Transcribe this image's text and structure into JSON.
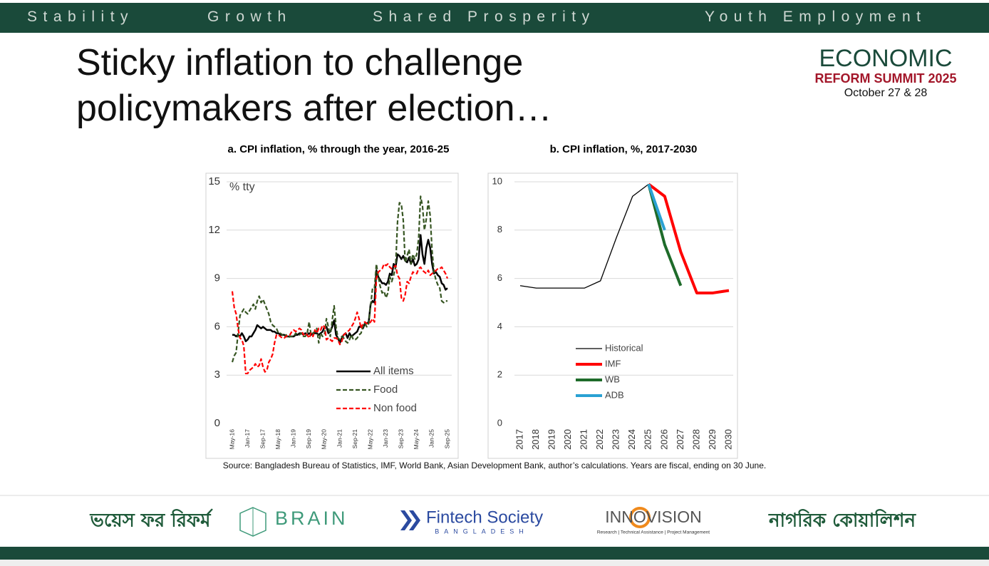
{
  "header": {
    "pillars": [
      "Stability",
      "Growth",
      "Shared Prosperity",
      "Youth Employment"
    ]
  },
  "title_lines": [
    "Sticky inflation to challenge",
    "policymakers after election…"
  ],
  "summit": {
    "line1": "ECONOMIC",
    "line2": "REFORM SUMMIT 2025",
    "dates": "October 27 & 28"
  },
  "source": "Source: Bangladesh Bureau of Statistics, IMF, World Bank, Asian Development Bank, author’s calculations. Years are fiscal, ending on 30 June.",
  "footer": {
    "voice": "ভয়েস ফর রিফর্ম",
    "brain": "BRAIN",
    "fintech": "Fintech Society",
    "fintech_sub": "BANGLADESH",
    "innovision": "INNOVISION",
    "innovision_sub": "Research | Technical Assistance | Project Management",
    "coalition": "নাগরিক কোয়ালিশন"
  },
  "chart_data": [
    {
      "type": "line",
      "title": "a.   CPI inflation, % through the year, 2016-25",
      "annotation": "% tty",
      "categories": [
        "May-16",
        null,
        null,
        null,
        null,
        null,
        null,
        null,
        "Jan-17",
        null,
        null,
        null,
        null,
        null,
        null,
        null,
        "Sep-17",
        null,
        null,
        null,
        null,
        null,
        null,
        null,
        "May-18",
        null,
        null,
        null,
        null,
        null,
        null,
        null,
        "Jan-19",
        null,
        null,
        null,
        null,
        null,
        null,
        null,
        "Sep-19",
        null,
        null,
        null,
        null,
        null,
        null,
        null,
        "May-20",
        null,
        null,
        null,
        null,
        null,
        null,
        null,
        "Jan-21",
        null,
        null,
        null,
        null,
        null,
        null,
        null,
        "Sep-21",
        null,
        null,
        null,
        null,
        null,
        null,
        null,
        "May-22",
        null,
        null,
        null,
        null,
        null,
        null,
        null,
        "Jan-23",
        null,
        null,
        null,
        null,
        null,
        null,
        null,
        "Sep-23",
        null,
        null,
        null,
        null,
        null,
        null,
        null,
        "May-24",
        null,
        null,
        null,
        null,
        null,
        null,
        null,
        "Jan-25",
        null,
        null,
        null,
        null,
        null,
        null,
        null,
        "Sep-25"
      ],
      "series": [
        {
          "name": "All items",
          "color": "#000000",
          "width": 2.5,
          "dashed": false,
          "values": [
            5.5,
            5.5,
            5.4,
            5.5,
            5.4,
            5.6,
            5.4,
            5.1,
            5.2,
            5.4,
            5.4,
            5.6,
            5.8,
            6.1,
            6.0,
            5.9,
            6.0,
            5.9,
            5.8,
            5.8,
            5.8,
            5.7,
            5.7,
            5.6,
            5.6,
            5.5,
            5.5,
            5.5,
            5.4,
            5.4,
            5.4,
            5.4,
            5.4,
            5.5,
            5.5,
            5.6,
            5.6,
            5.5,
            5.6,
            5.5,
            5.6,
            5.5,
            5.6,
            5.6,
            5.6,
            5.5,
            5.6,
            5.7,
            6.0,
            6.0,
            5.6,
            5.7,
            6.0,
            6.4,
            5.5,
            5.3,
            5.0,
            5.3,
            5.5,
            5.6,
            5.3,
            5.6,
            5.4,
            5.5,
            5.6,
            5.7,
            6.0,
            6.0,
            5.9,
            6.2,
            6.2,
            6.3,
            7.4,
            7.6,
            7.5,
            9.5,
            9.1,
            8.9,
            8.7,
            8.7,
            8.6,
            8.8,
            9.3,
            9.2,
            9.9,
            9.7,
            10.5,
            10.4,
            10.2,
            10.4,
            10.1,
            10.0,
            10.3,
            9.9,
            10.2,
            9.8,
            9.9,
            10.2,
            11.7,
            10.5,
            9.9,
            10.9,
            11.4,
            10.9,
            9.9,
            9.3,
            9.4,
            9.2,
            9.1,
            8.7,
            8.6,
            8.3,
            8.4
          ]
        },
        {
          "name": "Food",
          "color": "#375623",
          "width": 2.2,
          "dashed": true,
          "values": [
            3.8,
            4.2,
            4.4,
            5.6,
            6.7,
            6.9,
            7.1,
            6.9,
            6.8,
            7.0,
            7.2,
            7.4,
            7.1,
            7.6,
            7.9,
            7.5,
            7.7,
            7.4,
            7.1,
            6.8,
            6.3,
            6.1,
            6.0,
            5.9,
            5.6,
            5.6,
            5.5,
            5.4,
            5.5,
            5.3,
            5.4,
            5.4,
            5.4,
            5.6,
            5.5,
            5.5,
            5.6,
            5.4,
            5.4,
            5.6,
            6.3,
            5.5,
            5.6,
            5.7,
            5.9,
            5.0,
            5.6,
            5.4,
            5.5,
            6.5,
            6.0,
            5.4,
            6.4,
            7.3,
            6.0,
            5.3,
            5.2,
            5.4,
            5.3,
            5.1,
            5.0,
            5.2,
            5.5,
            5.2,
            5.2,
            5.3,
            5.5,
            5.6,
            6.0,
            6.2,
            6.0,
            6.2,
            7.3,
            8.4,
            8.4,
            9.9,
            9.1,
            8.5,
            8.1,
            8.2,
            7.8,
            8.1,
            9.1,
            8.8,
            9.2,
            9.7,
            12.5,
            13.7,
            13.6,
            12.6,
            10.0,
            10.4,
            10.8,
            9.9,
            10.5,
            10.2,
            10.5,
            11.5,
            14.1,
            13.5,
            12.0,
            12.7,
            13.8,
            12.9,
            10.7,
            9.4,
            8.9,
            8.6,
            8.4,
            7.6,
            7.5,
            7.6,
            7.6
          ]
        },
        {
          "name": "Non food",
          "color": "#ff0000",
          "width": 2.2,
          "dashed": true,
          "values": [
            8.2,
            7.2,
            6.8,
            5.9,
            5.3,
            5.2,
            4.8,
            3.1,
            3.1,
            3.3,
            3.4,
            3.5,
            3.7,
            3.5,
            3.6,
            4.0,
            3.5,
            3.2,
            3.3,
            3.8,
            4.0,
            4.3,
            5.0,
            5.5,
            5.5,
            5.4,
            5.3,
            5.3,
            5.4,
            5.5,
            5.5,
            5.7,
            5.8,
            5.7,
            5.8,
            5.9,
            5.8,
            5.5,
            5.6,
            5.5,
            5.3,
            5.6,
            5.4,
            5.8,
            5.6,
            5.9,
            5.8,
            6.1,
            6.0,
            5.2,
            5.3,
            5.2,
            5.1,
            5.3,
            5.3,
            5.2,
            4.9,
            5.1,
            5.5,
            5.6,
            5.7,
            5.8,
            6.0,
            6.2,
            6.5,
            6.9,
            6.5,
            5.9,
            6.2,
            6.3,
            6.2,
            6.2,
            6.3,
            6.5,
            6.3,
            9.0,
            9.4,
            9.5,
            9.6,
            9.9,
            9.8,
            9.9,
            9.7,
            9.6,
            9.7,
            9.8,
            9.2,
            9.0,
            7.8,
            7.6,
            8.0,
            8.8,
            8.7,
            9.1,
            9.4,
            9.3,
            9.3,
            9.6,
            9.7,
            9.5,
            9.4,
            9.3,
            9.5,
            9.2,
            9.3,
            9.4,
            9.5,
            9.6,
            9.6,
            9.7,
            9.5,
            9.3,
            9.0
          ]
        }
      ],
      "ylim": [
        0,
        15
      ],
      "yticks": [
        0,
        3,
        6,
        9,
        12,
        15
      ],
      "grid": true,
      "legend": "lower right"
    },
    {
      "type": "line",
      "title": "b.   CPI inflation, %, 2017-2030",
      "categories": [
        "2017",
        "2018",
        "2019",
        "2020",
        "2021",
        "2022",
        "2023",
        "2024",
        "2025",
        "2026",
        "2027",
        "2028",
        "2029",
        "2030"
      ],
      "series": [
        {
          "name": "Historical",
          "color": "#000000",
          "width": 1.3,
          "dashed": false,
          "values": [
            5.7,
            5.6,
            5.6,
            5.6,
            5.6,
            5.9,
            7.7,
            9.4,
            9.9,
            null,
            null,
            null,
            null,
            null
          ]
        },
        {
          "name": "IMF",
          "color": "#ff0000",
          "width": 4,
          "dashed": false,
          "values": [
            null,
            null,
            null,
            null,
            null,
            null,
            null,
            null,
            9.9,
            9.4,
            7.1,
            5.4,
            5.4,
            5.5
          ]
        },
        {
          "name": "WB",
          "color": "#1e6b2a",
          "width": 4,
          "dashed": false,
          "values": [
            null,
            null,
            null,
            null,
            null,
            null,
            null,
            null,
            9.9,
            7.4,
            5.7,
            null,
            null,
            null
          ]
        },
        {
          "name": "ADB",
          "color": "#2aa1d3",
          "width": 4,
          "dashed": false,
          "values": [
            null,
            null,
            null,
            null,
            null,
            null,
            null,
            null,
            9.9,
            8.0,
            null,
            null,
            null,
            null
          ]
        }
      ],
      "ylim": [
        0,
        10
      ],
      "yticks": [
        0,
        2,
        4,
        6,
        8,
        10
      ],
      "grid": true,
      "legend": "center left"
    }
  ]
}
